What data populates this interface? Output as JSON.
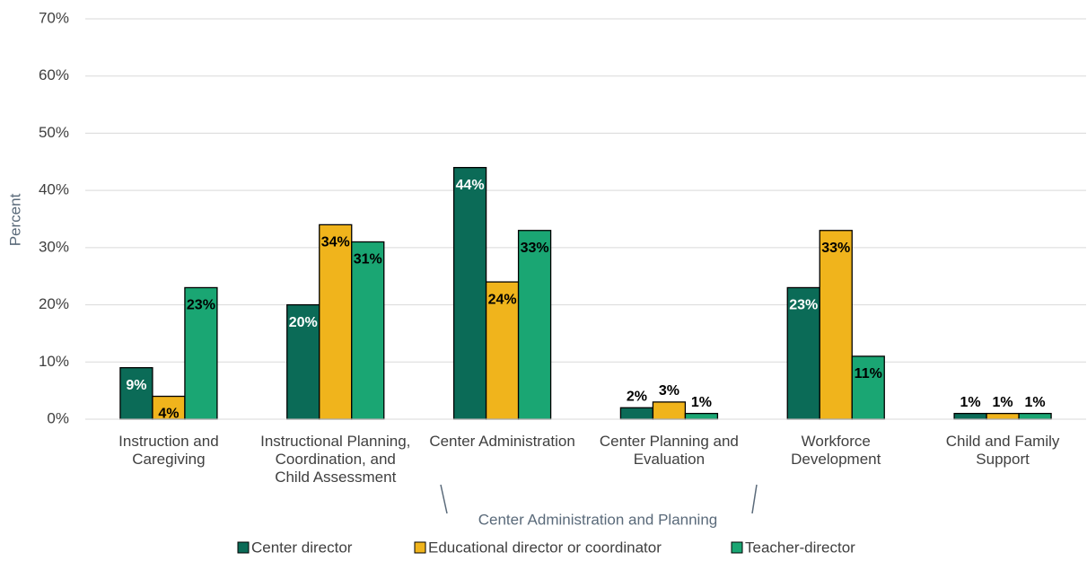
{
  "chart_data": {
    "type": "bar",
    "y_label": "Percent",
    "categories": [
      "Instruction and Caregiving",
      "Instructional Planning, Coordination, and Child Assessment",
      "Center Administration",
      "Center Planning and Evaluation",
      "Workforce Development",
      "Child and Family Support"
    ],
    "series": [
      {
        "name": "Center director",
        "color": "#0b6b57",
        "values": [
          9,
          20,
          44,
          2,
          23,
          1
        ],
        "value_labels": [
          "9%",
          "20%",
          "44%",
          "2%",
          "23%",
          "1%"
        ]
      },
      {
        "name": "Educational director or coordinator",
        "color": "#f0b41c",
        "values": [
          4,
          34,
          24,
          3,
          33,
          1
        ],
        "value_labels": [
          "4%",
          "34%",
          "24%",
          "3%",
          "33%",
          "1%"
        ]
      },
      {
        "name": "Teacher-director",
        "color": "#1aa673",
        "values": [
          23,
          31,
          33,
          1,
          11,
          1
        ],
        "value_labels": [
          "23%",
          "31%",
          "33%",
          "1%",
          "11%",
          "1%"
        ]
      }
    ],
    "annotation": "Center Administration and Planning",
    "ylim": [
      0,
      70
    ],
    "yticks": [
      {
        "value": 0,
        "label": "0%"
      },
      {
        "value": 10,
        "label": "10%"
      },
      {
        "value": 20,
        "label": "20%"
      },
      {
        "value": 30,
        "label": "30%"
      },
      {
        "value": 40,
        "label": "40%"
      },
      {
        "value": 50,
        "label": "50%"
      },
      {
        "value": 60,
        "label": "60%"
      },
      {
        "value": 70,
        "label": "70%"
      }
    ],
    "grid": true,
    "legend": "bottom"
  }
}
